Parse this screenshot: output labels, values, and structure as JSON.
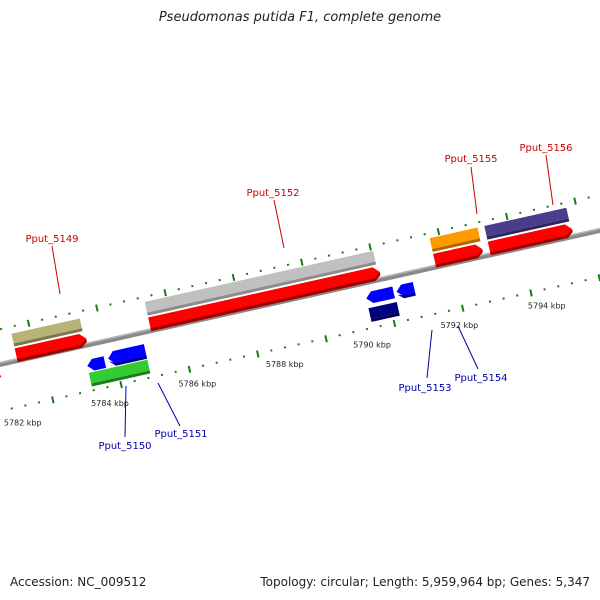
{
  "title": "Pseudomonas putida F1, complete genome",
  "footer": {
    "accession": "Accession: NC_009512",
    "summary": "Topology: circular; Length: 5,959,964 bp; Genes: 5,347"
  },
  "colors": {
    "forward_label": "#cc0000",
    "reverse_label": "#0000aa",
    "tick": "#1a7a1a",
    "backbone": "#8a8a8a",
    "cds_forward": "#ff0000",
    "cds_reverse": "#0000ff"
  },
  "kbp_labels": [
    "5782 kbp",
    "5784 kbp",
    "5786 kbp",
    "5788 kbp",
    "5790 kbp",
    "5792 kbp",
    "5794 kbp"
  ],
  "genes": [
    {
      "id": "Pput_5149",
      "strand": "forward",
      "color": "#b8b478"
    },
    {
      "id": "Pput_5150",
      "strand": "reverse",
      "color": "#33cc33"
    },
    {
      "id": "Pput_5151",
      "strand": "reverse",
      "color": "#0000ff"
    },
    {
      "id": "Pput_5152",
      "strand": "forward",
      "color": "#c0c0c0"
    },
    {
      "id": "Pput_5153",
      "strand": "reverse",
      "color": "#000080"
    },
    {
      "id": "Pput_5154",
      "strand": "reverse",
      "color": "#0000ff"
    },
    {
      "id": "Pput_5155",
      "strand": "forward",
      "color": "#ff9900"
    },
    {
      "id": "Pput_5156",
      "strand": "forward",
      "color": "#4b3c8c"
    }
  ]
}
